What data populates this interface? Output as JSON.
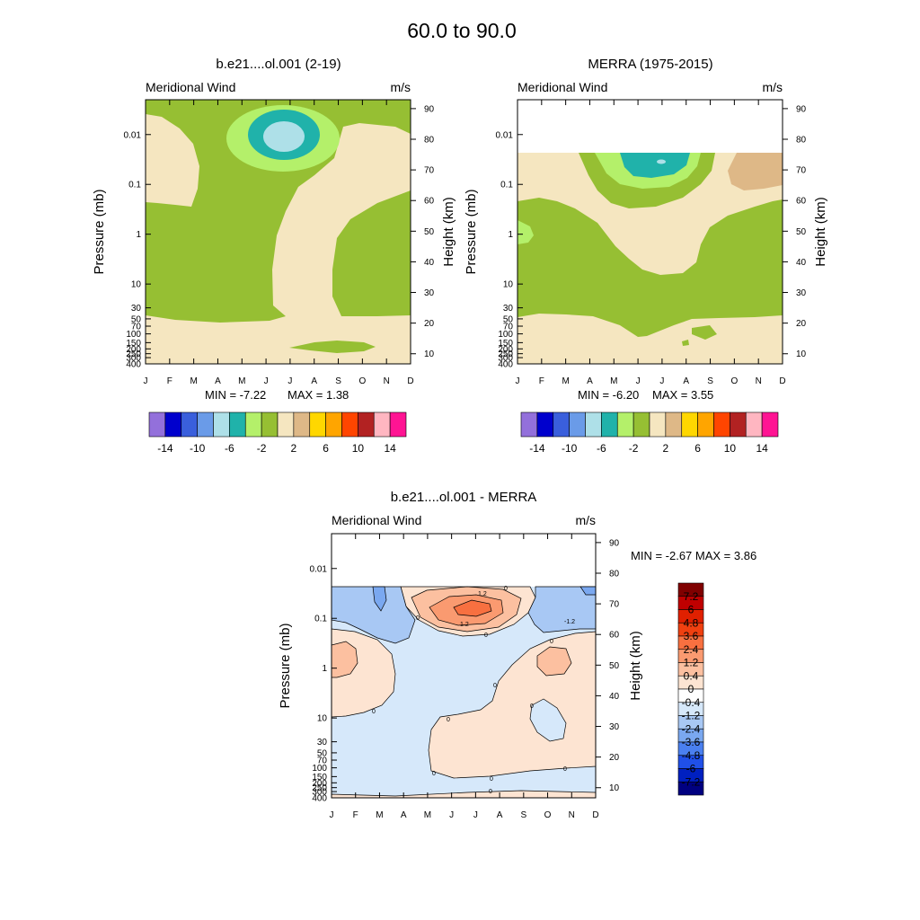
{
  "figure_title": "60.0 to  90.0",
  "chart_data": [
    {
      "type": "heatmap",
      "title": "b.e21....ol.001 (2-19)",
      "variable_label": "Meridional Wind",
      "units_label": "m/s",
      "xlabel": "",
      "ylabel_left": "Pressure (mb)",
      "ylabel_right": "Height (km)",
      "x_ticks": [
        "J",
        "F",
        "M",
        "A",
        "M",
        "J",
        "J",
        "A",
        "S",
        "O",
        "N",
        "D"
      ],
      "pressure_ticks": [
        "0.01",
        "0.1",
        "1",
        "10",
        "30",
        "50",
        "70",
        "100",
        "150",
        "200",
        "250",
        "300",
        "400"
      ],
      "height_ticks": [
        "90",
        "80",
        "70",
        "60",
        "50",
        "40",
        "30",
        "20",
        "10"
      ],
      "min_label": "MIN =  -7.22",
      "max_label": "MAX =   1.38",
      "min": -7.22,
      "max": 1.38,
      "colorbar_levels": [
        -16,
        -14,
        -12,
        -10,
        -8,
        -6,
        -4,
        -2,
        0,
        2,
        4,
        6,
        8,
        10,
        12,
        14,
        16
      ],
      "colorbar_labels": [
        "-14",
        "-10",
        "-6",
        "-2",
        "2",
        "6",
        "10",
        "14"
      ],
      "colorbar_colors": [
        "#9370DB",
        "#0000CD",
        "#3A5FDC",
        "#6A9BE8",
        "#AEE0E8",
        "#20B2AA",
        "#B4F06A",
        "#96BF33",
        "#F5E6C0",
        "#DEB887",
        "#FFD700",
        "#FFA500",
        "#FF4500",
        "#B22222",
        "#FFB6C1",
        "#FF1493"
      ]
    },
    {
      "type": "heatmap",
      "title": "MERRA (1975-2015)",
      "variable_label": "Meridional Wind",
      "units_label": "m/s",
      "xlabel": "",
      "ylabel_left": "Pressure (mb)",
      "ylabel_right": "Height (km)",
      "x_ticks": [
        "J",
        "F",
        "M",
        "A",
        "M",
        "J",
        "J",
        "A",
        "S",
        "O",
        "N",
        "D"
      ],
      "pressure_ticks": [
        "0.01",
        "0.1",
        "1",
        "10",
        "30",
        "50",
        "70",
        "100",
        "150",
        "200",
        "250",
        "300",
        "400"
      ],
      "height_ticks": [
        "90",
        "80",
        "70",
        "60",
        "50",
        "40",
        "30",
        "20",
        "10"
      ],
      "min_label": "MIN =  -6.20",
      "max_label": "MAX =   3.55",
      "min": -6.2,
      "max": 3.55,
      "colorbar_levels": [
        -16,
        -14,
        -12,
        -10,
        -8,
        -6,
        -4,
        -2,
        0,
        2,
        4,
        6,
        8,
        10,
        12,
        14,
        16
      ],
      "colorbar_labels": [
        "-14",
        "-10",
        "-6",
        "-2",
        "2",
        "6",
        "10",
        "14"
      ],
      "colorbar_colors": [
        "#9370DB",
        "#0000CD",
        "#3A5FDC",
        "#6A9BE8",
        "#AEE0E8",
        "#20B2AA",
        "#B4F06A",
        "#96BF33",
        "#F5E6C0",
        "#DEB887",
        "#FFD700",
        "#FFA500",
        "#FF4500",
        "#B22222",
        "#FFB6C1",
        "#FF1493"
      ]
    },
    {
      "type": "heatmap",
      "title": "b.e21....ol.001 - MERRA",
      "variable_label": "Meridional Wind",
      "units_label": "m/s",
      "xlabel": "",
      "ylabel_left": "Pressure (mb)",
      "ylabel_right": "Height (km)",
      "x_ticks": [
        "J",
        "F",
        "M",
        "A",
        "M",
        "J",
        "J",
        "A",
        "S",
        "O",
        "N",
        "D"
      ],
      "pressure_ticks": [
        "0.01",
        "0.1",
        "1",
        "10",
        "30",
        "50",
        "70",
        "100",
        "150",
        "200",
        "250",
        "300",
        "400"
      ],
      "height_ticks": [
        "90",
        "80",
        "70",
        "60",
        "50",
        "40",
        "30",
        "20",
        "10"
      ],
      "minmax_label": "MIN =  -2.67  MAX =   3.86",
      "min": -2.67,
      "max": 3.86,
      "contour_labels": [
        "1.2",
        "1.2",
        "-1.2",
        "0",
        "0",
        "0",
        "0",
        "0",
        "0",
        "0",
        "0",
        "0",
        "0",
        "0",
        "0"
      ],
      "colorbar_labels": [
        "7.2",
        "6",
        "4.8",
        "3.6",
        "2.4",
        "1.2",
        "0.4",
        "0",
        "-0.4",
        "-1.2",
        "-2.4",
        "-3.6",
        "-4.8",
        "-6",
        "-7.2"
      ],
      "colorbar_colors": [
        "#800000",
        "#C00000",
        "#E02000",
        "#F04010",
        "#F87040",
        "#FA9A70",
        "#FCC0A0",
        "#FDE4D2",
        "#FFFFFF",
        "#D6E8FA",
        "#A8C8F4",
        "#7AA8F0",
        "#4A80F0",
        "#2050E8",
        "#0020C0",
        "#000080"
      ]
    }
  ]
}
